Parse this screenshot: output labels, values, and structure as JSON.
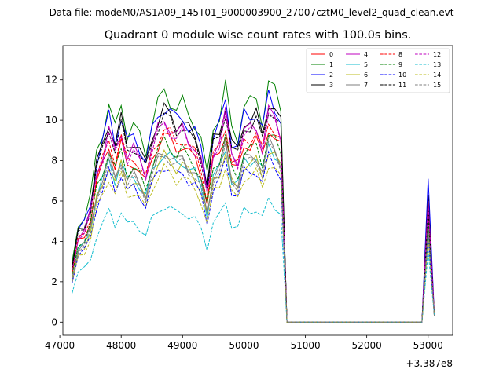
{
  "suptitle": "Data file: modeM0/AS1A09_145T01_9000003900_27007cztM0_level2_quad_clean.evt",
  "chart_data": {
    "type": "line",
    "title": "Quadrant 0 module wise count rates with 100.0s bins.",
    "xlabel": "",
    "ylabel": "",
    "x_offset_label": "+3.387e8",
    "xlim": [
      47050,
      53400
    ],
    "ylim": [
      -0.65,
      13.7
    ],
    "xticks": [
      47000,
      48000,
      49000,
      50000,
      51000,
      52000,
      53000
    ],
    "xtick_labels": [
      "47000",
      "48000",
      "49000",
      "50000",
      "51000",
      "52000",
      "53000"
    ],
    "yticks": [
      0,
      2,
      4,
      6,
      8,
      10,
      12
    ],
    "ytick_labels": [
      "0",
      "2",
      "4",
      "6",
      "8",
      "10",
      "12"
    ],
    "grid": false,
    "legend": {
      "position": "upper-right",
      "columns": 4
    },
    "x": [
      47200,
      47300,
      47400,
      47500,
      47600,
      47700,
      47800,
      47900,
      48000,
      48100,
      48200,
      48300,
      48400,
      48500,
      48600,
      48700,
      48800,
      48900,
      49000,
      49100,
      49200,
      49300,
      49400,
      49500,
      49600,
      49700,
      49800,
      49900,
      50000,
      50100,
      50200,
      50300,
      50400,
      50500,
      50600,
      50700,
      50800,
      50900,
      51000,
      51100,
      51200,
      51300,
      51400,
      51500,
      51600,
      51700,
      51800,
      51900,
      52000,
      52100,
      52200,
      52300,
      52400,
      52500,
      52600,
      52700,
      52800,
      52900,
      53000,
      53100
    ],
    "series": [
      {
        "name": "0",
        "color": "#ff0000",
        "dash": "solid",
        "base": 8.8,
        "end": 5.0
      },
      {
        "name": "1",
        "color": "#008000",
        "dash": "solid",
        "base": 10.8,
        "end": 6.0
      },
      {
        "name": "2",
        "color": "#0000ff",
        "dash": "solid",
        "base": 10.2,
        "end": 7.1
      },
      {
        "name": "3",
        "color": "#000000",
        "dash": "solid",
        "base": 10.0,
        "end": 6.3
      },
      {
        "name": "4",
        "color": "#bf00bf",
        "dash": "solid",
        "base": 9.5,
        "end": 6.0
      },
      {
        "name": "5",
        "color": "#17becf",
        "dash": "solid",
        "base": 8.0,
        "end": 4.2
      },
      {
        "name": "6",
        "color": "#bcbd22",
        "dash": "solid",
        "base": 7.8,
        "end": 4.5
      },
      {
        "name": "7",
        "color": "#7f7f7f",
        "dash": "solid",
        "base": 8.1,
        "end": 4.9
      },
      {
        "name": "8",
        "color": "#ff0000",
        "dash": "dashed",
        "base": 9.1,
        "end": 5.5
      },
      {
        "name": "9",
        "color": "#008000",
        "dash": "dashed",
        "base": 8.5,
        "end": 5.2
      },
      {
        "name": "10",
        "color": "#0000ff",
        "dash": "dashed",
        "base": 7.4,
        "end": 4.3
      },
      {
        "name": "11",
        "color": "#000000",
        "dash": "dashed",
        "base": 9.7,
        "end": 5.6
      },
      {
        "name": "12",
        "color": "#bf00bf",
        "dash": "dashed",
        "base": 9.3,
        "end": 5.9
      },
      {
        "name": "13",
        "color": "#17becf",
        "dash": "dashed",
        "base": 5.5,
        "end": 3.5
      },
      {
        "name": "14",
        "color": "#bcbd22",
        "dash": "dashed",
        "base": 7.2,
        "end": 4.1
      },
      {
        "name": "15",
        "color": "#7f7f7f",
        "dash": "dashed",
        "base": 7.9,
        "end": 4.6
      }
    ],
    "shape": [
      0.27,
      0.45,
      0.48,
      0.57,
      0.78,
      0.88,
      1.0,
      0.88,
      1.0,
      0.87,
      0.9,
      0.85,
      0.78,
      0.92,
      1.0,
      1.05,
      1.02,
      0.98,
      1.0,
      0.95,
      0.92,
      0.84,
      0.67,
      0.9,
      0.95,
      1.08,
      0.88,
      0.85,
      1.0,
      1.0,
      1.02,
      0.93,
      1.1,
      1.05,
      0.98,
      0.0,
      0.0,
      0.0,
      0.0,
      0.0,
      0.0,
      0.0,
      0.0,
      0.0,
      0.0,
      0.0,
      0.0,
      0.0,
      0.0,
      0.0,
      0.0,
      0.0,
      0.0,
      0.0,
      0.0,
      0.0,
      0.0,
      0.0,
      1.0,
      0.05
    ]
  }
}
